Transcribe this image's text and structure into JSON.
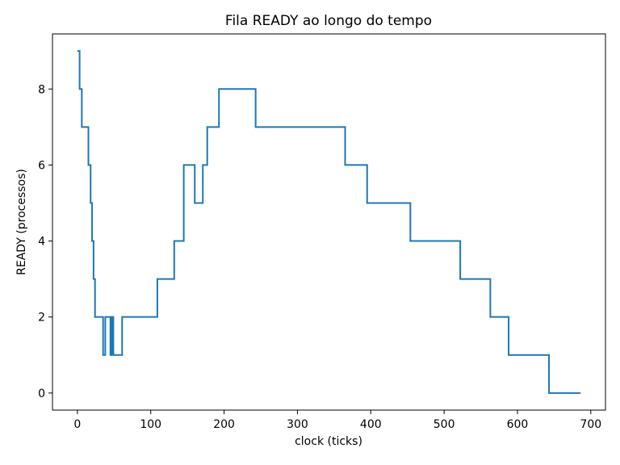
{
  "chart_data": {
    "type": "line",
    "title": "Fila READY ao longo do tempo",
    "xlabel": "clock (ticks)",
    "ylabel": "READY (processos)",
    "xlim": [
      -34,
      720
    ],
    "ylim": [
      -0.45,
      9.45
    ],
    "xticks": [
      0,
      100,
      200,
      300,
      400,
      500,
      600,
      700
    ],
    "yticks": [
      0,
      2,
      4,
      6,
      8
    ],
    "xtick_labels": [
      "0",
      "100",
      "200",
      "300",
      "400",
      "500",
      "600",
      "700"
    ],
    "ytick_labels": [
      "0",
      "2",
      "4",
      "6",
      "8"
    ],
    "grid": false,
    "line_color": "#1f77b4",
    "series": [
      {
        "step": "post",
        "x": [
          1,
          3,
          6,
          15,
          18,
          20,
          22,
          24,
          26,
          35,
          38,
          45,
          47,
          49,
          61,
          109,
          132,
          145,
          160,
          171,
          177,
          180,
          193,
          243,
          365,
          395,
          454,
          522,
          563,
          588,
          643,
          685
        ],
        "y": [
          9,
          8,
          7,
          6,
          5,
          4,
          3,
          2,
          2,
          1,
          2,
          1,
          2,
          1,
          2,
          3,
          4,
          6,
          5,
          6,
          7,
          7,
          8,
          7,
          6,
          5,
          4,
          3,
          2,
          1,
          0,
          0
        ]
      }
    ]
  }
}
